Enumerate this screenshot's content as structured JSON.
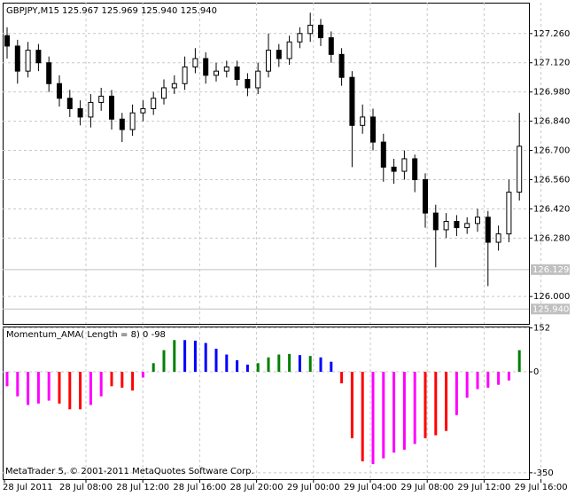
{
  "chart_data": [
    {
      "type": "candlestick",
      "title": "GBPJPY,M15",
      "subtitle": "125.967 125.969 125.940 125.940",
      "open": [
        127.25,
        127.2,
        127.08,
        127.18,
        127.12,
        127.02,
        126.95,
        126.9,
        126.86,
        126.93,
        126.96,
        126.85,
        126.8,
        126.88,
        126.9,
        126.95,
        127.0,
        127.02,
        127.1,
        127.14,
        127.06,
        127.08,
        127.1,
        127.04,
        127.0,
        127.08,
        127.18,
        127.14,
        127.22,
        127.26,
        127.3,
        127.24,
        127.16,
        127.05,
        126.82,
        126.86,
        126.74,
        126.62,
        126.6,
        126.66,
        126.56,
        126.4,
        126.32,
        126.36,
        126.33,
        126.35,
        126.38,
        126.26,
        126.3,
        126.5
      ],
      "high": [
        127.29,
        127.23,
        127.22,
        127.21,
        127.15,
        127.06,
        126.99,
        126.94,
        126.97,
        127.0,
        126.99,
        126.88,
        126.92,
        126.94,
        126.98,
        127.04,
        127.06,
        127.15,
        127.19,
        127.17,
        127.12,
        127.13,
        127.13,
        127.07,
        127.12,
        127.26,
        127.21,
        127.25,
        127.29,
        127.36,
        127.33,
        127.27,
        127.19,
        127.08,
        126.92,
        126.9,
        126.78,
        126.66,
        126.7,
        126.68,
        126.59,
        126.44,
        126.4,
        126.39,
        126.38,
        126.42,
        126.41,
        126.34,
        126.56,
        126.88
      ],
      "low": [
        127.14,
        127.02,
        127.05,
        127.08,
        126.98,
        126.91,
        126.86,
        126.82,
        126.81,
        126.89,
        126.8,
        126.74,
        126.77,
        126.84,
        126.87,
        126.92,
        126.97,
        126.99,
        127.07,
        127.02,
        127.03,
        127.05,
        127.01,
        126.96,
        126.97,
        127.05,
        127.1,
        127.11,
        127.19,
        127.22,
        127.2,
        127.12,
        127.01,
        126.62,
        126.78,
        126.7,
        126.55,
        126.54,
        126.56,
        126.5,
        126.33,
        126.14,
        126.28,
        126.29,
        126.3,
        126.31,
        126.05,
        126.22,
        126.26,
        126.46
      ],
      "close": [
        127.2,
        127.08,
        127.18,
        127.12,
        127.02,
        126.95,
        126.9,
        126.86,
        126.93,
        126.96,
        126.85,
        126.8,
        126.88,
        126.9,
        126.95,
        127.0,
        127.02,
        127.1,
        127.14,
        127.06,
        127.08,
        127.1,
        127.04,
        127.0,
        127.08,
        127.18,
        127.14,
        127.22,
        127.26,
        127.3,
        127.24,
        127.16,
        127.05,
        126.82,
        126.86,
        126.74,
        126.62,
        126.6,
        126.66,
        126.56,
        126.4,
        126.32,
        126.36,
        126.33,
        126.35,
        126.38,
        126.26,
        126.3,
        126.5,
        126.72
      ],
      "ylim": [
        125.869,
        127.408
      ],
      "yticks": [
        {
          "value": 127.26,
          "label": "127.260"
        },
        {
          "value": 127.12,
          "label": "127.120"
        },
        {
          "value": 126.98,
          "label": "126.980"
        },
        {
          "value": 126.84,
          "label": "126.840"
        },
        {
          "value": 126.7,
          "label": "126.700"
        },
        {
          "value": 126.56,
          "label": "126.560"
        },
        {
          "value": 126.42,
          "label": "126.420"
        },
        {
          "value": 126.28,
          "label": "126.280"
        },
        {
          "value": 126.0,
          "label": "126.000"
        }
      ],
      "price_lines": [
        {
          "value": 126.129,
          "label": "126.129"
        },
        {
          "value": 125.94,
          "label": "125.940"
        }
      ],
      "grid": true
    },
    {
      "type": "histogram",
      "title": "Momentum_AMA( Length = 8) 0 -98",
      "values": [
        -50,
        -85,
        -115,
        -110,
        -100,
        -110,
        -130,
        -130,
        -115,
        -85,
        -50,
        -55,
        -65,
        -20,
        30,
        75,
        110,
        110,
        108,
        100,
        80,
        60,
        40,
        25,
        30,
        50,
        60,
        62,
        58,
        55,
        50,
        35,
        -40,
        -230,
        -310,
        -320,
        -300,
        -280,
        -270,
        -250,
        -230,
        -220,
        -205,
        -150,
        -90,
        -60,
        -55,
        -45,
        -30,
        75
      ],
      "colors": [
        "#ff00ff",
        "#ff00ff",
        "#ff00ff",
        "#ff00ff",
        "#ff00ff",
        "#ff0000",
        "#ff0000",
        "#ff0000",
        "#ff00ff",
        "#ff00ff",
        "#ff0000",
        "#ff0000",
        "#ff0000",
        "#ff00ff",
        "#008000",
        "#008000",
        "#008000",
        "#0000ff",
        "#0000ff",
        "#0000ff",
        "#0000ff",
        "#0000ff",
        "#0000ff",
        "#0000ff",
        "#008000",
        "#008000",
        "#008000",
        "#008000",
        "#0000ff",
        "#008000",
        "#0000ff",
        "#0000ff",
        "#ff0000",
        "#ff0000",
        "#ff0000",
        "#ff00ff",
        "#ff00ff",
        "#ff00ff",
        "#ff00ff",
        "#ff00ff",
        "#ff0000",
        "#ff0000",
        "#ff0000",
        "#ff00ff",
        "#ff00ff",
        "#ff00ff",
        "#ff00ff",
        "#ff00ff",
        "#ff00ff",
        "#008000"
      ],
      "ylim": [
        -372,
        157
      ],
      "yticks": [
        152,
        0,
        -350
      ],
      "grid": true,
      "annotation": "MetaTrader 5, © 2001-2011 MetaQuotes Software Corp.",
      "x_labels": [
        "28 Jul 2011",
        "28 Jul 08:00",
        "28 Jul 12:00",
        "28 Jul 16:00",
        "28 Jul 20:00",
        "29 Jul 00:00",
        "29 Jul 04:00",
        "29 Jul 08:00",
        "29 Jul 12:00",
        "29 Jul 16:00"
      ]
    }
  ]
}
